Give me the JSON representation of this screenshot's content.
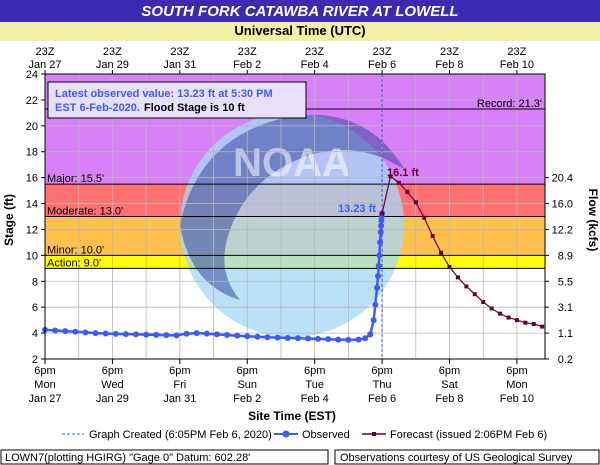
{
  "chart_data": {
    "type": "line",
    "title": "SOUTH FORK CATAWBA RIVER AT LOWELL",
    "top_axis_title": "Universal Time (UTC)",
    "xlabel": "Site Time (EST)",
    "ylabel": "Stage (ft)",
    "y2label": "Flow (kcfs)",
    "ylim": [
      2,
      24
    ],
    "y_ticks": [
      "2",
      "4",
      "6",
      "8",
      "10",
      "12",
      "14",
      "16",
      "18",
      "20",
      "22",
      "24"
    ],
    "y2_ticks": [
      {
        "stage": 4,
        "label": "1.1"
      },
      {
        "stage": 6,
        "label": "3.1"
      },
      {
        "stage": 8,
        "label": "5.5"
      },
      {
        "stage": 10,
        "label": "8.9"
      },
      {
        "stage": 12,
        "label": "12.2"
      },
      {
        "stage": 14,
        "label": "16.0"
      },
      {
        "stage": 16,
        "label": "20.4"
      },
      {
        "stage": 2,
        "label": "0.2"
      }
    ],
    "x_range_days": [
      0,
      14.833
    ],
    "x_ticks_bottom": [
      {
        "day": 0,
        "time": "6pm",
        "weekday": "Mon",
        "date": "Jan 27"
      },
      {
        "day": 2,
        "time": "6pm",
        "weekday": "Wed",
        "date": "Jan 29"
      },
      {
        "day": 4,
        "time": "6pm",
        "weekday": "Fri",
        "date": "Jan 31"
      },
      {
        "day": 6,
        "time": "6pm",
        "weekday": "Sun",
        "date": "Feb 2"
      },
      {
        "day": 8,
        "time": "6pm",
        "weekday": "Tue",
        "date": "Feb 4"
      },
      {
        "day": 10,
        "time": "6pm",
        "weekday": "Thu",
        "date": "Feb 6"
      },
      {
        "day": 12,
        "time": "6pm",
        "weekday": "Sat",
        "date": "Feb 8"
      },
      {
        "day": 14,
        "time": "6pm",
        "weekday": "Mon",
        "date": "Feb 10"
      }
    ],
    "x_ticks_top": [
      {
        "day": 0,
        "time": "23Z",
        "date": "Jan 27"
      },
      {
        "day": 2,
        "time": "23Z",
        "date": "Jan 29"
      },
      {
        "day": 4,
        "time": "23Z",
        "date": "Jan 31"
      },
      {
        "day": 6,
        "time": "23Z",
        "date": "Feb  2"
      },
      {
        "day": 8,
        "time": "23Z",
        "date": "Feb  4"
      },
      {
        "day": 10,
        "time": "23Z",
        "date": "Feb  6"
      },
      {
        "day": 12,
        "time": "23Z",
        "date": "Feb  8"
      },
      {
        "day": 14,
        "time": "23Z",
        "date": "Feb 10"
      }
    ],
    "flood_categories": [
      {
        "label": "Action: 9.0'",
        "from": 9.0,
        "to": 10.0,
        "color": "#ffff00"
      },
      {
        "label": "Minor: 10.0'",
        "from": 10.0,
        "to": 13.0,
        "color": "#ffc14d"
      },
      {
        "label": "Moderate: 13.0'",
        "from": 13.0,
        "to": 15.5,
        "color": "#ff7070"
      },
      {
        "label": "Major: 15.5'",
        "from": 15.5,
        "to": 24.0,
        "color": "#d880f8"
      }
    ],
    "record": {
      "label": "Record: 21.3'",
      "value": 21.3
    },
    "graph_created_day": 10.0,
    "series": [
      {
        "name": "Observed",
        "color": "#3b5cf5",
        "points": [
          [
            0.0,
            4.25
          ],
          [
            0.3,
            4.2
          ],
          [
            0.6,
            4.15
          ],
          [
            0.9,
            4.1
          ],
          [
            1.2,
            4.05
          ],
          [
            1.5,
            4.0
          ],
          [
            1.8,
            3.97
          ],
          [
            2.1,
            3.94
          ],
          [
            2.4,
            3.92
          ],
          [
            2.7,
            3.9
          ],
          [
            3.0,
            3.88
          ],
          [
            3.3,
            3.86
          ],
          [
            3.6,
            3.84
          ],
          [
            3.9,
            3.82
          ],
          [
            4.2,
            3.95
          ],
          [
            4.5,
            4.0
          ],
          [
            4.8,
            3.96
          ],
          [
            5.1,
            3.9
          ],
          [
            5.4,
            3.85
          ],
          [
            5.7,
            3.8
          ],
          [
            6.0,
            3.76
          ],
          [
            6.3,
            3.72
          ],
          [
            6.6,
            3.68
          ],
          [
            6.9,
            3.65
          ],
          [
            7.2,
            3.62
          ],
          [
            7.5,
            3.6
          ],
          [
            7.8,
            3.58
          ],
          [
            8.1,
            3.55
          ],
          [
            8.4,
            3.53
          ],
          [
            8.7,
            3.5
          ],
          [
            9.0,
            3.48
          ],
          [
            9.3,
            3.5
          ],
          [
            9.5,
            3.6
          ],
          [
            9.65,
            3.9
          ],
          [
            9.75,
            5.0
          ],
          [
            9.8,
            6.2
          ],
          [
            9.85,
            7.5
          ],
          [
            9.88,
            8.4
          ],
          [
            9.9,
            9.2
          ],
          [
            9.92,
            10.0
          ],
          [
            9.94,
            11.0
          ],
          [
            9.96,
            11.8
          ],
          [
            9.97,
            12.3
          ],
          [
            9.98,
            12.7
          ],
          [
            9.99,
            13.0
          ],
          [
            10.0,
            13.23
          ]
        ]
      },
      {
        "name": "Forecast",
        "color": "#660033",
        "points": [
          [
            10.0,
            13.23
          ],
          [
            10.25,
            16.1
          ],
          [
            10.5,
            15.6
          ],
          [
            10.75,
            14.9
          ],
          [
            11.0,
            14.1
          ],
          [
            11.25,
            12.9
          ],
          [
            11.5,
            11.5
          ],
          [
            11.75,
            10.2
          ],
          [
            12.0,
            9.1
          ],
          [
            12.25,
            8.3
          ],
          [
            12.5,
            7.6
          ],
          [
            12.75,
            7.0
          ],
          [
            13.0,
            6.4
          ],
          [
            13.25,
            5.9
          ],
          [
            13.5,
            5.5
          ],
          [
            13.75,
            5.2
          ],
          [
            14.0,
            5.0
          ],
          [
            14.25,
            4.8
          ],
          [
            14.5,
            4.7
          ],
          [
            14.75,
            4.5
          ]
        ]
      }
    ],
    "latest_observed": {
      "line1": "Latest observed value: 13.23 ft at 5:30 PM",
      "line2_prefix": "EST 6-Feb-2020.",
      "line2_suffix": "Flood Stage is 10 ft"
    },
    "observed_label": "13.23 ft",
    "forecast_peak_label": "16.1 ft",
    "legend": {
      "graph_created": "Graph Created (6:05PM Feb 6, 2020)",
      "observed": "Observed",
      "forecast": "Forecast (issued 2:06PM Feb 6)"
    },
    "footer_left": "LOWN7(plotting HGIRG) \"Gage 0\" Datum:  602.28'",
    "footer_right": "Observations courtesy of US Geological Survey",
    "colors": {
      "title_bar": "#3b2bb0",
      "header_bg": "#f0f0a8",
      "page_bg": "#ffffff",
      "observed": "#3b5cf5",
      "forecast": "#660033",
      "record_line": "#000000"
    }
  }
}
